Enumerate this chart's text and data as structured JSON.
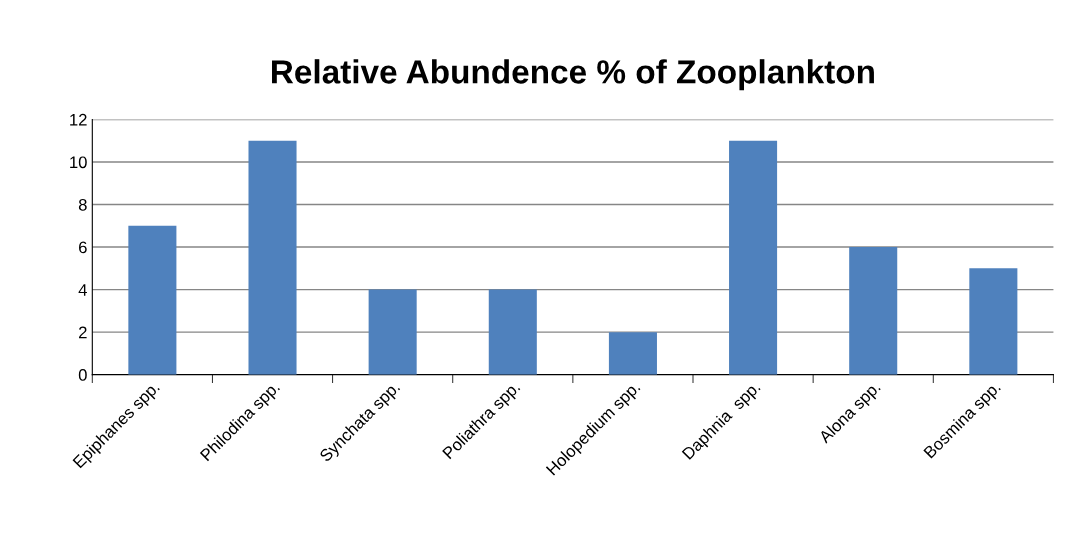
{
  "chart_data": {
    "type": "bar",
    "title": "Relative Abundence % of Zooplankton",
    "categories": [
      "Epiphanes spp.",
      "Philodina spp.",
      "Synchata spp.",
      "Poliathra spp.",
      "Holopedium spp.",
      "Daphnia  spp.",
      "Alona spp.",
      "Bosmina spp."
    ],
    "values": [
      7,
      11,
      4,
      4,
      2,
      11,
      6,
      5
    ],
    "color": "#4f81bd",
    "ylim": [
      0,
      12
    ],
    "yticks": [
      0,
      2,
      4,
      6,
      8,
      10,
      12
    ],
    "grid": "y"
  }
}
